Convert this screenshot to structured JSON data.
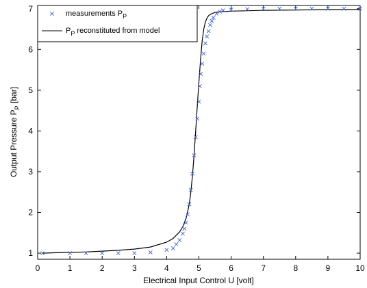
{
  "chart_data": {
    "type": "line",
    "xlabel": "Electrical Input Control U [volt]",
    "ylabel": {
      "main": "Output Pressure P",
      "sub": "P",
      "unit": " [bar]"
    },
    "xlim": [
      0,
      10
    ],
    "ylim": [
      0.85,
      7.08
    ],
    "xticks": [
      "0",
      "1",
      "2",
      "3",
      "4",
      "5",
      "6",
      "7",
      "8",
      "9",
      "10"
    ],
    "yticks": [
      "1",
      "2",
      "3",
      "4",
      "5",
      "6",
      "7"
    ],
    "grid": false,
    "legend_position": "top-left",
    "colors": {
      "measurements": "#4b6fd8",
      "model": "#000000"
    },
    "series": [
      {
        "name": {
          "main": "measurements P",
          "sub": "P"
        },
        "marker": "x",
        "x": [
          0.15,
          1.0,
          1.5,
          2.0,
          2.5,
          3.0,
          3.5,
          4.0,
          4.2,
          4.3,
          4.4,
          4.5,
          4.55,
          4.6,
          4.65,
          4.7,
          4.75,
          4.8,
          4.85,
          4.9,
          4.95,
          5.0,
          5.03,
          5.06,
          5.1,
          5.15,
          5.2,
          5.25,
          5.3,
          5.35,
          5.4,
          5.45,
          5.55,
          5.65,
          5.75,
          6.0,
          6.5,
          7.0,
          7.5,
          8.0,
          8.5,
          9.0,
          9.5,
          10.0
        ],
        "y": [
          1.0,
          1.0,
          1.0,
          1.0,
          1.0,
          1.0,
          1.02,
          1.08,
          1.12,
          1.22,
          1.32,
          1.48,
          1.6,
          1.75,
          1.95,
          2.2,
          2.55,
          2.95,
          3.4,
          3.85,
          4.3,
          4.72,
          5.1,
          5.4,
          5.65,
          5.9,
          6.15,
          6.32,
          6.45,
          6.6,
          6.7,
          6.78,
          6.88,
          6.93,
          6.96,
          6.98,
          6.99,
          7.0,
          7.0,
          7.0,
          7.0,
          7.0,
          7.0,
          7.0
        ]
      },
      {
        "name": {
          "main": "P",
          "sub": "P",
          "rest": " reconstituted from model"
        },
        "x": [
          0.15,
          0.5,
          1.0,
          1.5,
          2.0,
          2.5,
          3.0,
          3.5,
          4.0,
          4.2,
          4.4,
          4.5,
          4.6,
          4.7,
          4.75,
          4.8,
          4.85,
          4.9,
          4.95,
          5.0,
          5.05,
          5.1,
          5.15,
          5.2,
          5.25,
          5.3,
          5.4,
          5.5,
          5.6,
          5.8,
          6.0,
          6.5,
          7.0,
          8.0,
          9.0,
          10.0
        ],
        "y": [
          1.0,
          1.01,
          1.02,
          1.03,
          1.05,
          1.07,
          1.1,
          1.15,
          1.27,
          1.36,
          1.52,
          1.65,
          1.85,
          2.2,
          2.5,
          2.9,
          3.4,
          4.0,
          4.6,
          5.2,
          5.75,
          6.2,
          6.5,
          6.67,
          6.77,
          6.83,
          6.88,
          6.91,
          6.92,
          6.93,
          6.94,
          6.95,
          6.96,
          6.97,
          6.98,
          6.98
        ]
      }
    ]
  }
}
